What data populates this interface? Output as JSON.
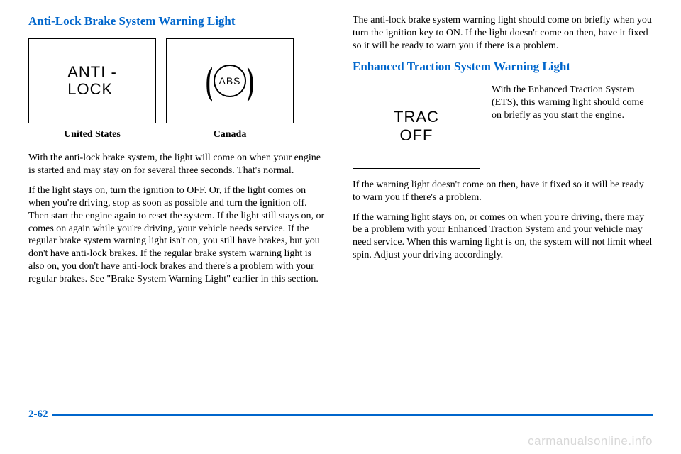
{
  "left": {
    "heading": "Anti-Lock Brake System Warning Light",
    "fig1_line1": "ANTI -",
    "fig1_line2": "LOCK",
    "fig2_abs": "ABS",
    "cap1": "United States",
    "cap2": "Canada",
    "p1": "With the anti-lock brake system, the light will come on when your engine is started and may stay on for several three seconds. That's normal.",
    "p2": "If the light stays on, turn the ignition to OFF. Or, if the light comes on when you're driving, stop as soon as possible and turn the ignition off. Then start the engine again to reset the system. If the light still stays on, or comes on again while you're driving, your vehicle needs service. If the regular brake system warning light isn't on, you still have brakes, but you don't have anti-lock brakes. If the regular brake system warning light is also on, you don't have anti-lock brakes and there's a problem with your regular brakes. See \"Brake System Warning Light\" earlier in this section."
  },
  "right": {
    "p1": "The anti-lock brake system warning light should come on briefly when you turn the ignition key to ON. If the light doesn't come on then, have it fixed so it will be ready to warn you if there is a problem.",
    "heading": "Enhanced Traction System Warning Light",
    "trac_line1": "TRAC",
    "trac_line2": "OFF",
    "side": "With the Enhanced Traction System (ETS), this warning light should come on briefly as you start the engine.",
    "p2": "If the warning light doesn't come on then, have it fixed so it will be ready to warn you if there's a problem.",
    "p3": "If the warning light stays on, or comes on when you're driving, there may be a problem with your Enhanced Traction System and your vehicle may need service. When this warning light is on, the system will not limit wheel spin. Adjust your driving accordingly."
  },
  "pagenum": "2-62",
  "watermark": "carmanualsonline.info"
}
